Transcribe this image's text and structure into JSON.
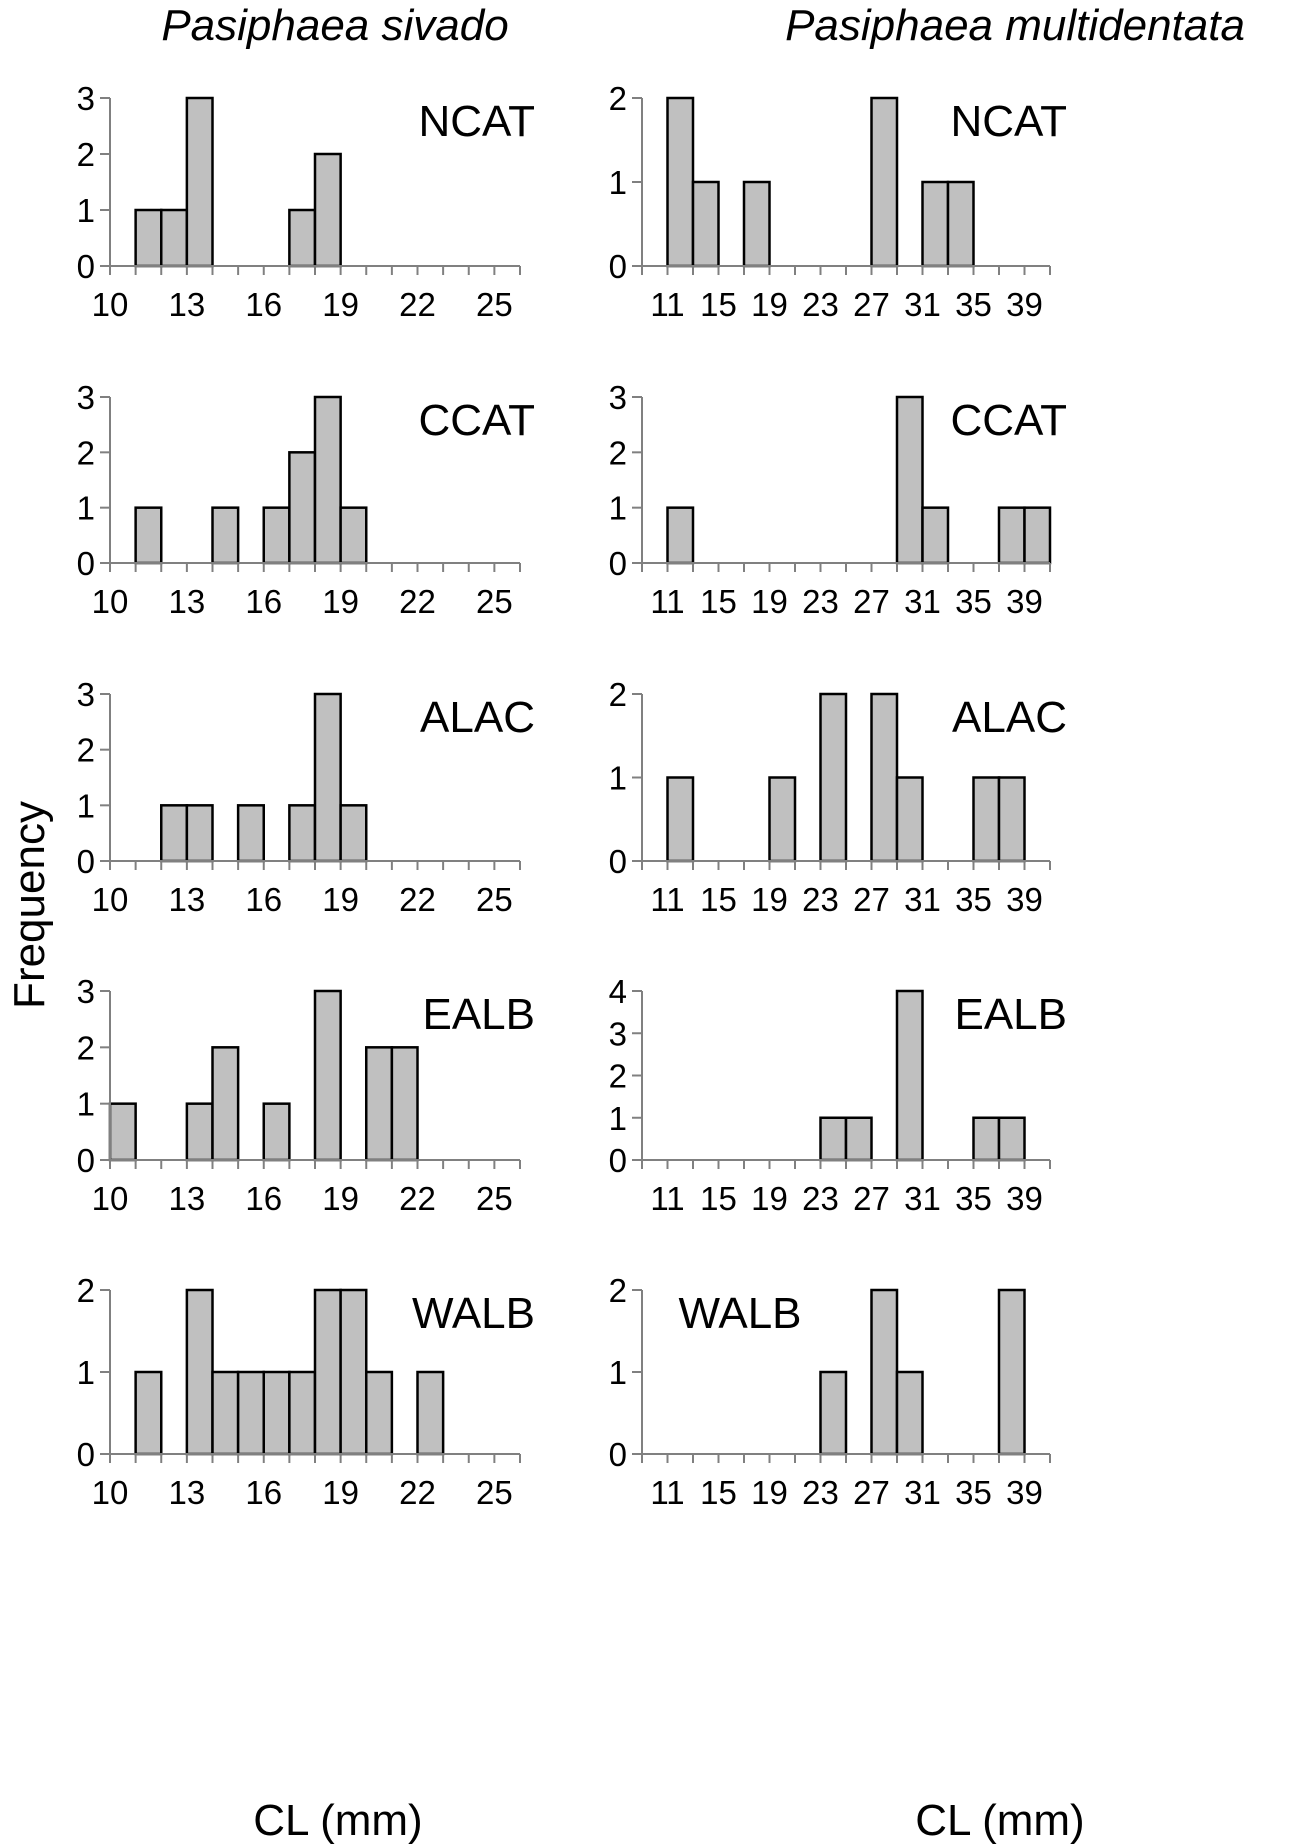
{
  "titles": {
    "left": "Pasiphaea sivado",
    "right": "Pasiphaea multidentata"
  },
  "labels": {
    "y": "Frequency",
    "x_left": "CL (mm)",
    "x_right": "CL (mm)"
  },
  "colors": {
    "bar_fill": "#c0c0c0",
    "bar_stroke": "#000000",
    "axis": "#808080"
  },
  "chart_data": [
    {
      "type": "bar",
      "panel": "NCAT",
      "species": "Pasiphaea sivado",
      "xlim": [
        10,
        26
      ],
      "x_ticks": [
        10,
        13,
        16,
        19,
        22,
        25
      ],
      "bin_width": 1,
      "bins": [
        [
          12,
          1
        ],
        [
          13,
          1
        ],
        [
          14,
          3
        ],
        [
          18,
          1
        ],
        [
          19,
          2
        ]
      ],
      "ylim": [
        0,
        3
      ],
      "y_ticks": [
        0,
        1,
        2,
        3
      ]
    },
    {
      "type": "bar",
      "panel": "NCAT",
      "species": "Pasiphaea multidentata",
      "xlim": [
        9,
        41
      ],
      "x_ticks": [
        11,
        15,
        19,
        23,
        27,
        31,
        35,
        39
      ],
      "bin_width": 2,
      "bins": [
        [
          13,
          2
        ],
        [
          15,
          1
        ],
        [
          19,
          1
        ],
        [
          29,
          2
        ],
        [
          33,
          1
        ],
        [
          35,
          1
        ]
      ],
      "ylim": [
        0,
        2
      ],
      "y_ticks": [
        0,
        1,
        2
      ]
    },
    {
      "type": "bar",
      "panel": "CCAT",
      "species": "Pasiphaea sivado",
      "xlim": [
        10,
        26
      ],
      "x_ticks": [
        10,
        13,
        16,
        19,
        22,
        25
      ],
      "bin_width": 1,
      "bins": [
        [
          12,
          1
        ],
        [
          15,
          1
        ],
        [
          17,
          1
        ],
        [
          18,
          2
        ],
        [
          19,
          3
        ],
        [
          20,
          1
        ]
      ],
      "ylim": [
        0,
        3
      ],
      "y_ticks": [
        0,
        1,
        2,
        3
      ]
    },
    {
      "type": "bar",
      "panel": "CCAT",
      "species": "Pasiphaea multidentata",
      "xlim": [
        9,
        41
      ],
      "x_ticks": [
        11,
        15,
        19,
        23,
        27,
        31,
        35,
        39
      ],
      "bin_width": 2,
      "bins": [
        [
          13,
          1
        ],
        [
          31,
          3
        ],
        [
          33,
          1
        ],
        [
          39,
          1
        ],
        [
          41,
          1
        ]
      ],
      "ylim": [
        0,
        3
      ],
      "y_ticks": [
        0,
        1,
        2,
        3
      ]
    },
    {
      "type": "bar",
      "panel": "ALAC",
      "species": "Pasiphaea sivado",
      "xlim": [
        10,
        26
      ],
      "x_ticks": [
        10,
        13,
        16,
        19,
        22,
        25
      ],
      "bin_width": 1,
      "bins": [
        [
          13,
          1
        ],
        [
          14,
          1
        ],
        [
          16,
          1
        ],
        [
          18,
          1
        ],
        [
          19,
          3
        ],
        [
          20,
          1
        ]
      ],
      "ylim": [
        0,
        3
      ],
      "y_ticks": [
        0,
        1,
        2,
        3
      ]
    },
    {
      "type": "bar",
      "panel": "ALAC",
      "species": "Pasiphaea multidentata",
      "xlim": [
        9,
        41
      ],
      "x_ticks": [
        11,
        15,
        19,
        23,
        27,
        31,
        35,
        39
      ],
      "bin_width": 2,
      "bins": [
        [
          13,
          1
        ],
        [
          21,
          1
        ],
        [
          25,
          2
        ],
        [
          29,
          2
        ],
        [
          31,
          1
        ],
        [
          37,
          1
        ],
        [
          39,
          1
        ]
      ],
      "ylim": [
        0,
        2
      ],
      "y_ticks": [
        0,
        1,
        2
      ]
    },
    {
      "type": "bar",
      "panel": "EALB",
      "species": "Pasiphaea sivado",
      "xlim": [
        10,
        26
      ],
      "x_ticks": [
        10,
        13,
        16,
        19,
        22,
        25
      ],
      "bin_width": 1,
      "bins": [
        [
          11,
          1
        ],
        [
          14,
          1
        ],
        [
          15,
          2
        ],
        [
          17,
          1
        ],
        [
          19,
          3
        ],
        [
          21,
          2
        ],
        [
          22,
          2
        ]
      ],
      "ylim": [
        0,
        3
      ],
      "y_ticks": [
        0,
        1,
        2,
        3
      ]
    },
    {
      "type": "bar",
      "panel": "EALB",
      "species": "Pasiphaea multidentata",
      "xlim": [
        9,
        41
      ],
      "x_ticks": [
        11,
        15,
        19,
        23,
        27,
        31,
        35,
        39
      ],
      "bin_width": 2,
      "bins": [
        [
          25,
          1
        ],
        [
          27,
          1
        ],
        [
          31,
          4
        ],
        [
          37,
          1
        ],
        [
          39,
          1
        ]
      ],
      "ylim": [
        0,
        4
      ],
      "y_ticks": [
        0,
        1,
        2,
        3,
        4
      ]
    },
    {
      "type": "bar",
      "panel": "WALB",
      "species": "Pasiphaea sivado",
      "xlim": [
        10,
        26
      ],
      "x_ticks": [
        10,
        13,
        16,
        19,
        22,
        25
      ],
      "bin_width": 1,
      "bins": [
        [
          12,
          1
        ],
        [
          14,
          2
        ],
        [
          15,
          1
        ],
        [
          16,
          1
        ],
        [
          17,
          1
        ],
        [
          18,
          1
        ],
        [
          19,
          2
        ],
        [
          20,
          2
        ],
        [
          21,
          1
        ],
        [
          23,
          1
        ]
      ],
      "ylim": [
        0,
        2
      ],
      "y_ticks": [
        0,
        1,
        2
      ]
    },
    {
      "type": "bar",
      "panel": "WALB",
      "species": "Pasiphaea multidentata",
      "xlim": [
        9,
        41
      ],
      "x_ticks": [
        11,
        15,
        19,
        23,
        27,
        31,
        35,
        39
      ],
      "bin_width": 2,
      "bins": [
        [
          25,
          1
        ],
        [
          29,
          2
        ],
        [
          31,
          1
        ],
        [
          39,
          2
        ]
      ],
      "ylim": [
        0,
        2
      ],
      "y_ticks": [
        0,
        1,
        2
      ]
    }
  ]
}
